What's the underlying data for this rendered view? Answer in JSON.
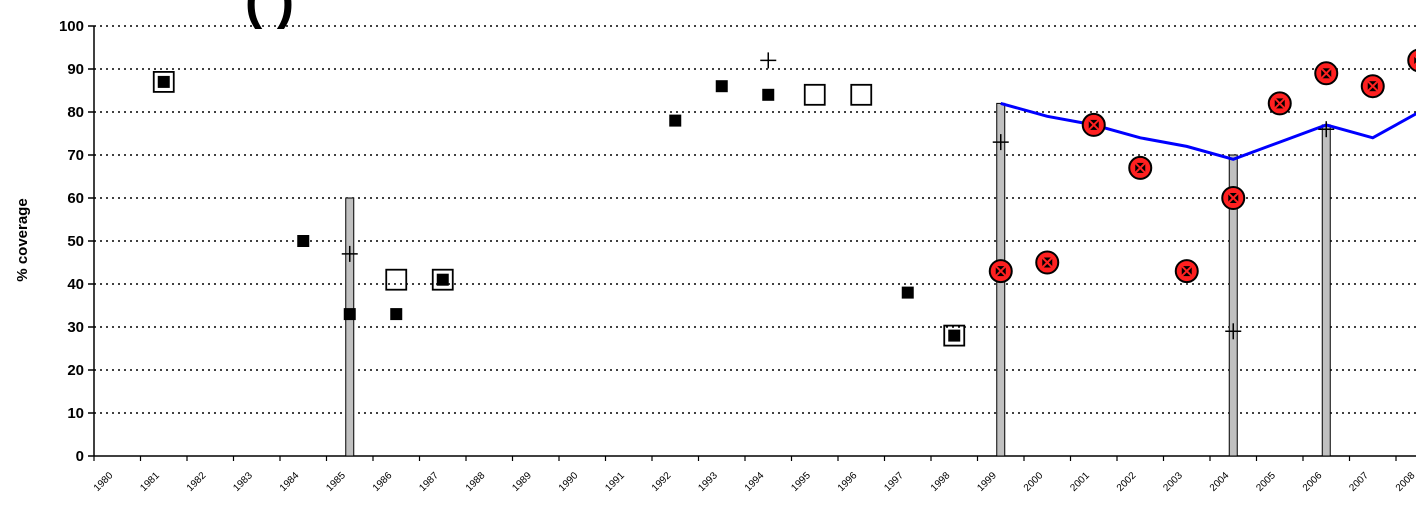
{
  "chart_data": {
    "type": "scatter",
    "title": "(            )",
    "xlabel": "",
    "ylabel": "% coverage",
    "ylim": [
      0,
      100
    ],
    "yticks": [
      0,
      10,
      20,
      30,
      40,
      50,
      60,
      70,
      80,
      90,
      100
    ],
    "grid": "horizontal dotted",
    "x_categories": [
      "1980",
      "1981",
      "1982",
      "1983",
      "1984",
      "1985",
      "1986",
      "1987",
      "1988",
      "1989",
      "1990",
      "1991",
      "1992",
      "1993",
      "1994",
      "1995",
      "1996",
      "1997",
      "1998",
      "1999",
      "2000",
      "2001",
      "2002",
      "2003",
      "2004",
      "2005",
      "2006",
      "2007",
      "2008"
    ],
    "series": [
      {
        "marker": "filled-square",
        "color": "#000000",
        "points": [
          {
            "x": "1981",
            "y": 87
          },
          {
            "x": "1984",
            "y": 50
          },
          {
            "x": "1985",
            "y": 33
          },
          {
            "x": "1986",
            "y": 33
          },
          {
            "x": "1987",
            "y": 41
          },
          {
            "x": "1992",
            "y": 78
          },
          {
            "x": "1993",
            "y": 86
          },
          {
            "x": "1994",
            "y": 84
          },
          {
            "x": "1997",
            "y": 38
          },
          {
            "x": "1998",
            "y": 28
          }
        ]
      },
      {
        "marker": "open-square",
        "color": "#000000",
        "points": [
          {
            "x": "1981",
            "y": 87
          },
          {
            "x": "1986",
            "y": 41
          },
          {
            "x": "1987",
            "y": 41
          },
          {
            "x": "1995",
            "y": 84
          },
          {
            "x": "1996",
            "y": 84
          },
          {
            "x": "1998",
            "y": 28
          }
        ]
      },
      {
        "marker": "plus",
        "color": "#000000",
        "points": [
          {
            "x": "1985",
            "y": 47
          },
          {
            "x": "1994",
            "y": 92
          },
          {
            "x": "1999",
            "y": 73
          },
          {
            "x": "2004",
            "y": 29
          },
          {
            "x": "2006",
            "y": 76
          }
        ]
      },
      {
        "marker": "red-x-circle",
        "color": "#ff0000",
        "points": [
          {
            "x": "1999",
            "y": 43
          },
          {
            "x": "2000",
            "y": 45
          },
          {
            "x": "2001",
            "y": 77
          },
          {
            "x": "2002",
            "y": 67
          },
          {
            "x": "2003",
            "y": 43
          },
          {
            "x": "2004",
            "y": 60
          },
          {
            "x": "2005",
            "y": 82
          },
          {
            "x": "2006",
            "y": 89
          },
          {
            "x": "2007",
            "y": 86
          },
          {
            "x": "2008",
            "y": 92
          }
        ]
      },
      {
        "marker": "line",
        "color": "#0000ff",
        "points": [
          {
            "x": "1999",
            "y": 82
          },
          {
            "x": "2000",
            "y": 79
          },
          {
            "x": "2001",
            "y": 77
          },
          {
            "x": "2002",
            "y": 74
          },
          {
            "x": "2003",
            "y": 72
          },
          {
            "x": "2004",
            "y": 69
          },
          {
            "x": "2005",
            "y": 73
          },
          {
            "x": "2006",
            "y": 77
          },
          {
            "x": "2007",
            "y": 74
          },
          {
            "x": "2008",
            "y": 80
          }
        ]
      },
      {
        "marker": "bar",
        "color": "#c0c0c0",
        "points": [
          {
            "x": "1985",
            "y": 60
          },
          {
            "x": "1999",
            "y": 82
          },
          {
            "x": "2004",
            "y": 70
          },
          {
            "x": "2006",
            "y": 77
          }
        ]
      }
    ]
  }
}
